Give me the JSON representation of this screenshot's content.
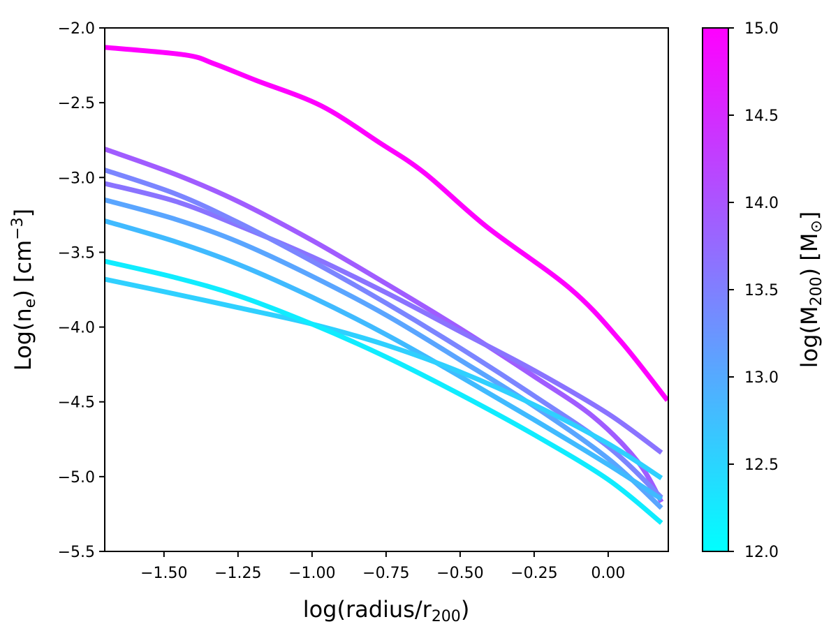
{
  "chart_data": {
    "type": "line",
    "title": "",
    "xlabel": "log(radius/r200)",
    "xlabel_main": "log(radius/r",
    "xlabel_sub": "200",
    "xlabel_end": ")",
    "ylabel": "Log(n_e) [cm^-3]",
    "ylabel_main": "Log(n",
    "ylabel_sub": "e",
    "ylabel_mid": ") [cm",
    "ylabel_sup": "−3",
    "ylabel_end": "]",
    "xlim": [
      -1.7,
      0.203
    ],
    "ylim": [
      -5.5,
      -2.0
    ],
    "grid": false,
    "x_ticks": [
      -1.5,
      -1.25,
      -1.0,
      -0.75,
      -0.5,
      -0.25,
      0.0
    ],
    "x_tick_labels": [
      "−1.50",
      "−1.25",
      "−1.00",
      "−0.75",
      "−0.50",
      "−0.25",
      "0.00"
    ],
    "y_ticks": [
      -2.0,
      -2.5,
      -3.0,
      -3.5,
      -4.0,
      -4.5,
      -5.0,
      -5.5
    ],
    "y_tick_labels": [
      "−2.0",
      "−2.5",
      "−3.0",
      "−3.5",
      "−4.0",
      "−4.5",
      "−5.0",
      "−5.5"
    ],
    "colorbar": {
      "colormap": "cool",
      "label": "log(M200) [M_sun]",
      "label_main": "log(M",
      "label_sub": "200",
      "label_mid": ") [M",
      "label_sub2": "⊙",
      "label_end": "]",
      "range": [
        12.0,
        15.0
      ],
      "ticks": [
        12.0,
        12.5,
        13.0,
        13.5,
        14.0,
        14.5,
        15.0
      ],
      "tick_labels": [
        "12.0",
        "12.5",
        "13.0",
        "13.5",
        "14.0",
        "14.5",
        "15.0"
      ],
      "color_low": "#00ffff",
      "color_high": "#ff00ff"
    },
    "series": [
      {
        "name": "log M200 ≈ 15.0",
        "color": "#ff00ff",
        "x": [
          -1.7,
          -1.43,
          -1.33,
          -1.19,
          -0.97,
          -0.77,
          -0.62,
          -0.41,
          -0.13,
          0.04,
          0.2
        ],
        "y": [
          -2.13,
          -2.18,
          -2.24,
          -2.35,
          -2.52,
          -2.77,
          -2.97,
          -3.33,
          -3.74,
          -4.09,
          -4.49
        ]
      },
      {
        "name": "log M200 ≈ 13.9",
        "color": "#a05cff",
        "x": [
          -1.7,
          -1.46,
          -1.25,
          -1.0,
          -0.75,
          -0.5,
          -0.25,
          -0.05,
          0.1,
          0.18
        ],
        "y": [
          -2.81,
          -2.98,
          -3.16,
          -3.42,
          -3.71,
          -4.01,
          -4.33,
          -4.6,
          -4.9,
          -5.17
        ]
      },
      {
        "name": "log M200 ≈ 13.6",
        "color": "#8a73ff",
        "x": [
          -1.7,
          -1.46,
          -1.25,
          -1.0,
          -0.75,
          -0.5,
          -0.25,
          0.0,
          0.18
        ],
        "y": [
          -3.04,
          -3.16,
          -3.32,
          -3.53,
          -3.77,
          -4.03,
          -4.29,
          -4.58,
          -4.84
        ]
      },
      {
        "name": "log M200 ≈ 13.4",
        "color": "#7b85ff",
        "x": [
          -1.7,
          -1.46,
          -1.25,
          -1.0,
          -0.75,
          -0.5,
          -0.25,
          0.0,
          0.18
        ],
        "y": [
          -2.95,
          -3.11,
          -3.3,
          -3.56,
          -3.84,
          -4.14,
          -4.46,
          -4.8,
          -5.14
        ]
      },
      {
        "name": "log M200 ≈ 13.0",
        "color": "#5aa5ff",
        "x": [
          -1.7,
          -1.46,
          -1.25,
          -1.0,
          -0.75,
          -0.5,
          -0.25,
          0.0,
          0.18
        ],
        "y": [
          -3.15,
          -3.28,
          -3.43,
          -3.66,
          -3.92,
          -4.22,
          -4.53,
          -4.88,
          -5.21
        ]
      },
      {
        "name": "log M200 ≈ 12.7",
        "color": "#40baff",
        "x": [
          -1.7,
          -1.46,
          -1.25,
          -1.0,
          -0.75,
          -0.5,
          -0.25,
          0.0,
          0.18
        ],
        "y": [
          -3.29,
          -3.43,
          -3.58,
          -3.8,
          -4.05,
          -4.33,
          -4.62,
          -4.92,
          -5.15
        ]
      },
      {
        "name": "log M200 ≈ 12.5",
        "color": "#2fd0ff",
        "x": [
          -1.7,
          -1.46,
          -1.25,
          -1.0,
          -0.75,
          -0.5,
          -0.25,
          0.0,
          0.18
        ],
        "y": [
          -3.68,
          -3.78,
          -3.87,
          -3.98,
          -4.12,
          -4.3,
          -4.52,
          -4.78,
          -5.01
        ]
      },
      {
        "name": "log M200 ≈ 12.1",
        "color": "#10ecff",
        "x": [
          -1.7,
          -1.46,
          -1.25,
          -1.0,
          -0.75,
          -0.5,
          -0.25,
          0.0,
          0.18
        ],
        "y": [
          -3.56,
          -3.67,
          -3.79,
          -3.98,
          -4.2,
          -4.45,
          -4.72,
          -5.02,
          -5.31
        ]
      }
    ]
  }
}
